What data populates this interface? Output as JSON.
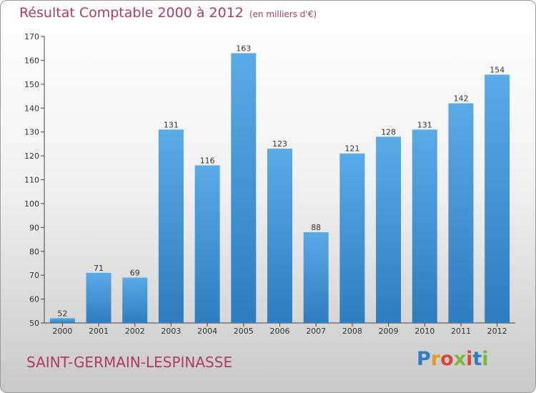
{
  "header": {
    "title": "Résultat Comptable 2000 à 2012",
    "unit": "(en milliers d'€)"
  },
  "footer": {
    "commune": "SAINT-GERMAIN-LESPINASSE",
    "logo_text": "Proxiti"
  },
  "colors": {
    "title": "#b03a68",
    "bar_top": "#5aaae6",
    "bar_bottom": "#2e7dbf",
    "axis": "#444444"
  },
  "chart_data": {
    "type": "bar",
    "categories": [
      "2000",
      "2001",
      "2002",
      "2003",
      "2004",
      "2005",
      "2006",
      "2007",
      "2008",
      "2009",
      "2010",
      "2011",
      "2012"
    ],
    "values": [
      52,
      71,
      69,
      131,
      116,
      163,
      123,
      88,
      121,
      128,
      131,
      142,
      154
    ],
    "ylim": [
      50,
      170
    ],
    "yticks": [
      50,
      60,
      70,
      80,
      90,
      100,
      110,
      120,
      130,
      140,
      150,
      160,
      170
    ],
    "grid": false,
    "data_labels": true
  }
}
